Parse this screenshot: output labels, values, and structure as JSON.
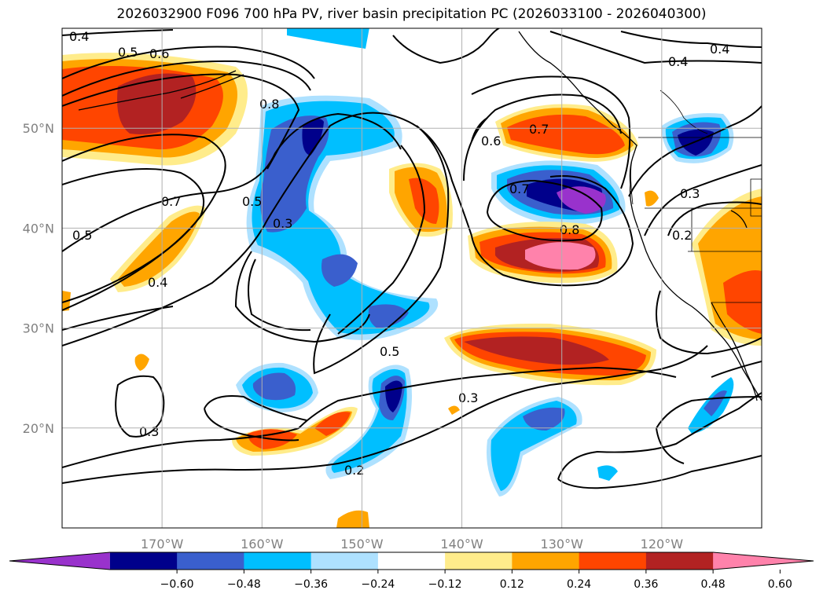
{
  "title": "2026032900 F096 700 hPa PV, river basin precipitation PC (2026033100 - 2026040300)",
  "map": {
    "lon_range": [
      -180,
      -110
    ],
    "lat_range": [
      10,
      60
    ],
    "lon_ticks": [
      -170,
      -160,
      -150,
      -140,
      -130,
      -120
    ],
    "lon_tick_labels": [
      "170°W",
      "160°W",
      "150°W",
      "140°W",
      "130°W",
      "120°W"
    ],
    "lat_ticks": [
      20,
      30,
      40,
      50
    ],
    "lat_tick_labels": [
      "20°N",
      "30°N",
      "40°N",
      "50°N"
    ]
  },
  "contour_labels": [
    "0.4",
    "0.5",
    "0.6",
    "0.8",
    "0.4",
    "0.4",
    "0.7",
    "0.6",
    "0.7",
    "0.5",
    "0.3",
    "0.5",
    "0.4",
    "0.7",
    "0.8",
    "0.3",
    "0.2",
    "0.5",
    "0.3",
    "0.3",
    "0.2"
  ],
  "colorbar": {
    "colors": [
      "#9932cc",
      "#00008b",
      "#3a5fcd",
      "#00bfff",
      "#aee1ff",
      "#ffffff",
      "#ffec8b",
      "#ffa500",
      "#ff4500",
      "#b22222",
      "#ff82ab"
    ],
    "tick_labels": [
      "−0.60",
      "−0.48",
      "−0.36",
      "−0.24",
      "−0.12",
      "0.12",
      "0.24",
      "0.36",
      "0.48",
      "0.60"
    ]
  }
}
